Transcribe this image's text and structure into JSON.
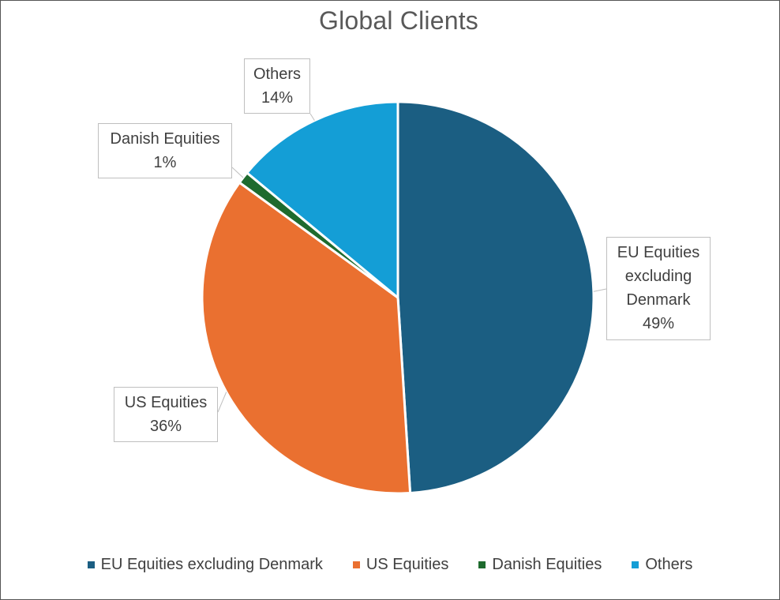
{
  "chart_data": {
    "type": "pie",
    "title": "Global Clients",
    "slices": [
      {
        "label": "EU Equities excluding Denmark",
        "value": 49,
        "display": "49%",
        "color": "#1b5e82"
      },
      {
        "label": "US Equities",
        "value": 36,
        "display": "36%",
        "color": "#ea7030"
      },
      {
        "label": "Danish Equities",
        "value": 1,
        "display": "1%",
        "color": "#1e6b2e"
      },
      {
        "label": "Others",
        "value": 14,
        "display": "14%",
        "color": "#149ed6"
      }
    ],
    "data_labels": {
      "eu": {
        "lines": [
          "EU Equities",
          "excluding",
          "Denmark"
        ],
        "percent": "49%"
      },
      "us": {
        "lines": [
          "US Equities"
        ],
        "percent": "36%"
      },
      "danish": {
        "lines": [
          "Danish Equities"
        ],
        "percent": "1%"
      },
      "others": {
        "lines": [
          "Others"
        ],
        "percent": "14%"
      }
    },
    "legend": {
      "position": "bottom",
      "entries": [
        "EU Equities excluding Denmark",
        "US Equities",
        "Danish Equities",
        "Others"
      ]
    }
  }
}
